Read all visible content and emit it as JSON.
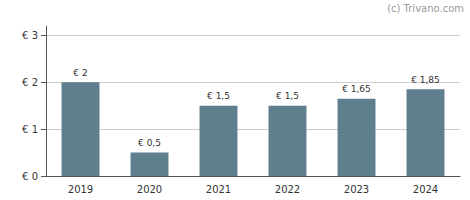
{
  "chart_data": {
    "type": "bar",
    "categories": [
      "2019",
      "2020",
      "2021",
      "2022",
      "2023",
      "2024"
    ],
    "values": [
      2.0,
      0.5,
      1.5,
      1.5,
      1.65,
      1.85
    ],
    "value_labels": [
      "€ 2",
      "€ 0,5",
      "€ 1,5",
      "€ 1,5",
      "€ 1,65",
      "€ 1,85"
    ],
    "data_labels": true,
    "color": "#5f7f8f",
    "ylim": [
      0,
      3.2
    ],
    "yticks": [
      {
        "value": 0,
        "label": "€ 0"
      },
      {
        "value": 1,
        "label": "€ 1"
      },
      {
        "value": 2,
        "label": "€ 2"
      },
      {
        "value": 3,
        "label": "€ 3"
      }
    ],
    "grid": true,
    "annotations": [
      "(c) Trivano.com"
    ]
  }
}
